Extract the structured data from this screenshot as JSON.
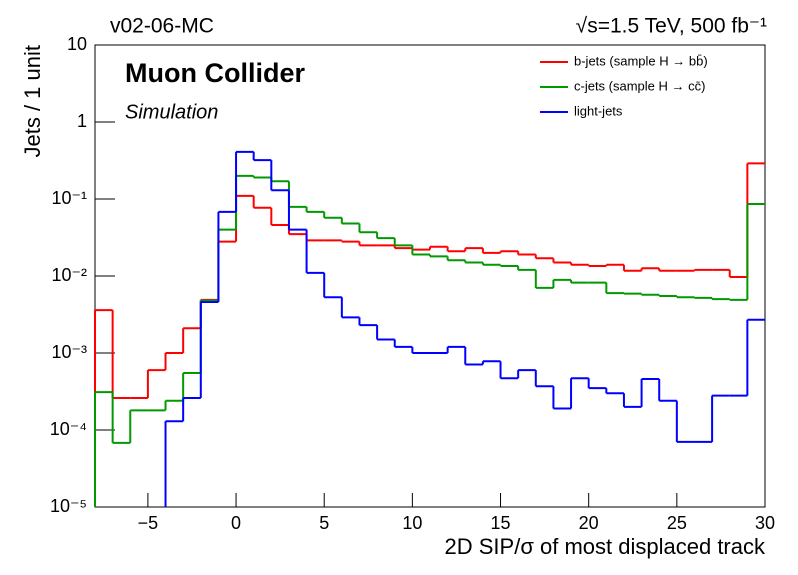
{
  "chart_data": {
    "type": "step-histogram",
    "title": "Muon Collider",
    "subtitle": "Simulation",
    "annotations": [
      "v02-06-MC",
      "√s=1.5 TeV, 500 fb⁻¹"
    ],
    "x_label": "2D SIP/σ of most displaced track",
    "y_label": "Jets / 1 unit",
    "log_y": true,
    "legend": "top-right",
    "bins": [
      -8,
      -7,
      -6,
      -5,
      -4,
      -3,
      -2,
      -1,
      0,
      1,
      2,
      3,
      4,
      5,
      6,
      7,
      8,
      9,
      10,
      11,
      12,
      13,
      14,
      15,
      16,
      17,
      18,
      19,
      20,
      21,
      22,
      23,
      24,
      25,
      26,
      27,
      28,
      29,
      30
    ],
    "series": [
      {
        "name": "b-jets (sample H → bb̄)",
        "color": "#ff0000",
        "values": [
          0.0036,
          0.00026,
          0.00026,
          0.0006,
          0.001,
          0.0021,
          0.0049,
          0.028,
          0.11,
          0.077,
          0.046,
          0.035,
          0.029,
          0.029,
          0.028,
          0.025,
          0.025,
          0.023,
          0.022,
          0.024,
          0.021,
          0.023,
          0.02,
          0.021,
          0.019,
          0.017,
          0.015,
          0.014,
          0.0135,
          0.014,
          0.0117,
          0.0126,
          0.0117,
          0.0117,
          0.012,
          0.012,
          0.0097,
          0.29
        ]
      },
      {
        "name": "c-jets (sample H → cc̄)",
        "color": "#009900",
        "values": [
          0.00031,
          6.8e-05,
          0.00018,
          0.00018,
          0.00024,
          0.00055,
          0.0048,
          0.04,
          0.2,
          0.19,
          0.17,
          0.079,
          0.068,
          0.057,
          0.048,
          0.037,
          0.031,
          0.025,
          0.019,
          0.018,
          0.016,
          0.015,
          0.014,
          0.0135,
          0.012,
          0.007,
          0.0089,
          0.0082,
          0.0082,
          0.006,
          0.0059,
          0.0057,
          0.0055,
          0.0053,
          0.0052,
          0.005,
          0.0049,
          0.086
        ]
      },
      {
        "name": "light-jets",
        "color": "#0000ff",
        "values": [
          null,
          null,
          null,
          null,
          0.00013,
          0.00026,
          0.0046,
          0.068,
          0.41,
          0.32,
          0.13,
          0.04,
          0.011,
          0.0053,
          0.0029,
          0.0023,
          0.0015,
          0.0012,
          0.001,
          0.001,
          0.0012,
          0.00071,
          0.00078,
          0.00047,
          0.0006,
          0.00037,
          0.00019,
          0.00047,
          0.00035,
          0.0003,
          0.0002,
          0.00046,
          0.00024,
          7e-05,
          7e-05,
          0.00028,
          0.00028,
          0.0027
        ]
      }
    ],
    "xlim": [
      -8,
      30
    ],
    "xticks": [
      {
        "value": -5,
        "label": "−5"
      },
      0,
      5,
      10,
      15,
      20,
      25,
      30
    ],
    "ylim": [
      1e-05,
      10
    ],
    "yticks": [
      {
        "value": 1e-05,
        "label": "10⁻⁵"
      },
      {
        "value": 0.0001,
        "label": "10⁻⁴"
      },
      {
        "value": 0.001,
        "label": "10⁻³"
      },
      {
        "value": 0.01,
        "label": "10⁻²"
      },
      {
        "value": 0.1,
        "label": "10⁻¹"
      },
      1,
      10
    ]
  }
}
